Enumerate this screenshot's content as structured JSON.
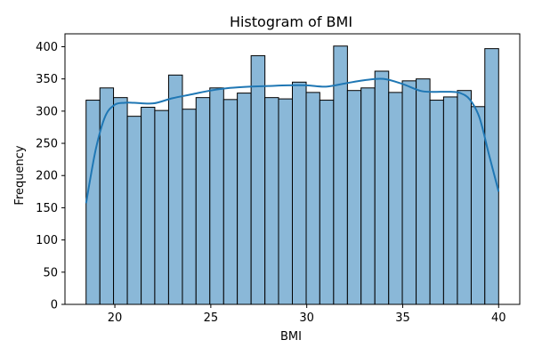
{
  "chart_data": {
    "type": "bar",
    "subtype": "histogram",
    "title": "Histogram of BMI",
    "xlabel": "BMI",
    "ylabel": "Frequency",
    "xlim": [
      17.4,
      41.1
    ],
    "ylim": [
      0,
      420
    ],
    "xticks": [
      20,
      25,
      30,
      35,
      40
    ],
    "yticks": [
      0,
      50,
      100,
      150,
      200,
      250,
      300,
      350,
      400
    ],
    "grid": false,
    "bin_start": 18.5,
    "bin_end": 40.0,
    "bins": [
      {
        "x0": 18.5,
        "x1": 19.22,
        "count": 317
      },
      {
        "x0": 19.22,
        "x1": 19.93,
        "count": 336
      },
      {
        "x0": 19.93,
        "x1": 20.65,
        "count": 321
      },
      {
        "x0": 20.65,
        "x1": 21.37,
        "count": 292
      },
      {
        "x0": 21.37,
        "x1": 22.08,
        "count": 306
      },
      {
        "x0": 22.08,
        "x1": 22.8,
        "count": 301
      },
      {
        "x0": 22.8,
        "x1": 23.52,
        "count": 356
      },
      {
        "x0": 23.52,
        "x1": 24.23,
        "count": 303
      },
      {
        "x0": 24.23,
        "x1": 24.95,
        "count": 321
      },
      {
        "x0": 24.95,
        "x1": 25.67,
        "count": 336
      },
      {
        "x0": 25.67,
        "x1": 26.38,
        "count": 318
      },
      {
        "x0": 26.38,
        "x1": 27.1,
        "count": 328
      },
      {
        "x0": 27.1,
        "x1": 27.82,
        "count": 386
      },
      {
        "x0": 27.82,
        "x1": 28.53,
        "count": 321
      },
      {
        "x0": 28.53,
        "x1": 29.25,
        "count": 319
      },
      {
        "x0": 29.25,
        "x1": 29.97,
        "count": 345
      },
      {
        "x0": 29.97,
        "x1": 30.68,
        "count": 329
      },
      {
        "x0": 30.68,
        "x1": 31.4,
        "count": 317
      },
      {
        "x0": 31.4,
        "x1": 32.12,
        "count": 401
      },
      {
        "x0": 32.12,
        "x1": 32.83,
        "count": 332
      },
      {
        "x0": 32.83,
        "x1": 33.55,
        "count": 336
      },
      {
        "x0": 33.55,
        "x1": 34.27,
        "count": 362
      },
      {
        "x0": 34.27,
        "x1": 34.98,
        "count": 329
      },
      {
        "x0": 34.98,
        "x1": 35.7,
        "count": 347
      },
      {
        "x0": 35.7,
        "x1": 36.42,
        "count": 350
      },
      {
        "x0": 36.42,
        "x1": 37.13,
        "count": 317
      },
      {
        "x0": 37.13,
        "x1": 37.85,
        "count": 322
      },
      {
        "x0": 37.85,
        "x1": 38.57,
        "count": 332
      },
      {
        "x0": 38.57,
        "x1": 39.28,
        "count": 307
      },
      {
        "x0": 39.28,
        "x1": 40.0,
        "count": 397
      }
    ],
    "kde": {
      "x": [
        18.5,
        19.0,
        19.5,
        20.0,
        20.5,
        21.0,
        22.0,
        23.0,
        24.0,
        25.0,
        26.0,
        27.0,
        28.0,
        29.0,
        30.0,
        31.0,
        32.0,
        33.0,
        34.0,
        35.0,
        36.0,
        37.0,
        37.5,
        38.0,
        38.5,
        39.0,
        39.5,
        40.0
      ],
      "y": [
        157,
        240,
        292,
        310,
        313,
        313,
        312,
        320,
        326,
        332,
        336,
        338,
        339,
        340,
        340,
        338,
        343,
        348,
        350,
        342,
        331,
        330,
        330,
        328,
        318,
        290,
        232,
        175
      ]
    },
    "colors": {
      "bar_fill": "#8ab8d8",
      "bar_edge": "#000000",
      "kde_line": "#1f77b4",
      "axes": "#000000"
    }
  }
}
